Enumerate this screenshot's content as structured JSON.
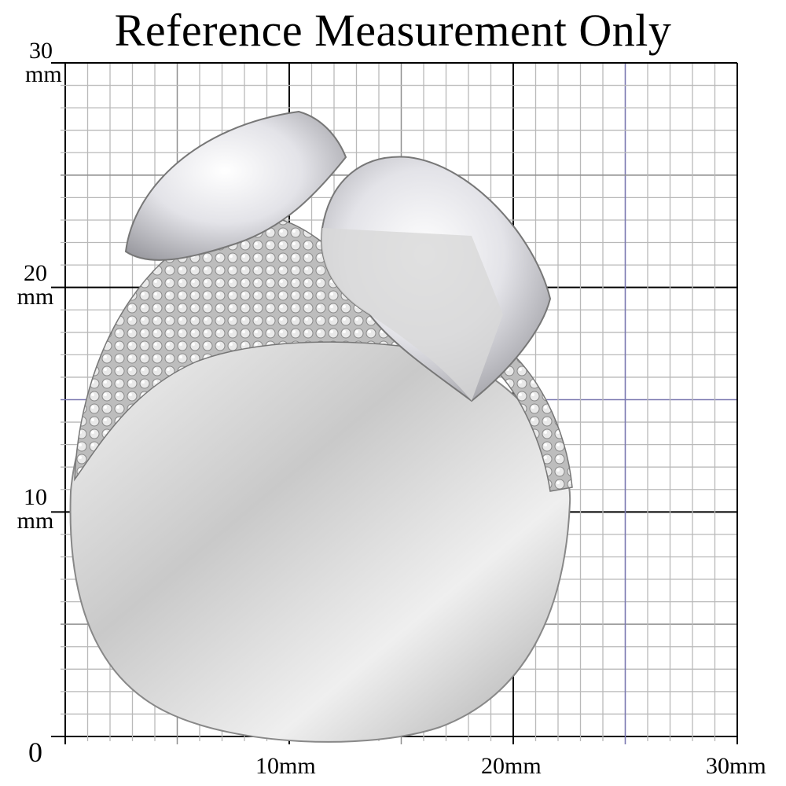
{
  "title": "Reference Measurement Only",
  "grid": {
    "unit": "mm",
    "range_mm": [
      0,
      30
    ],
    "minor_step_mm": 1,
    "major_step_mm": 10,
    "line_color": "#b9b9b9",
    "major_color": "#000000",
    "accent_color": "#7a78b0"
  },
  "y_labels": [
    {
      "value": "30",
      "unit": "mm"
    },
    {
      "value": "20",
      "unit": "mm"
    },
    {
      "value": "10",
      "unit": "mm"
    },
    {
      "value": "0",
      "unit": ""
    }
  ],
  "x_labels": [
    "10mm",
    "20mm",
    "30mm"
  ],
  "subject": "ring-photo"
}
